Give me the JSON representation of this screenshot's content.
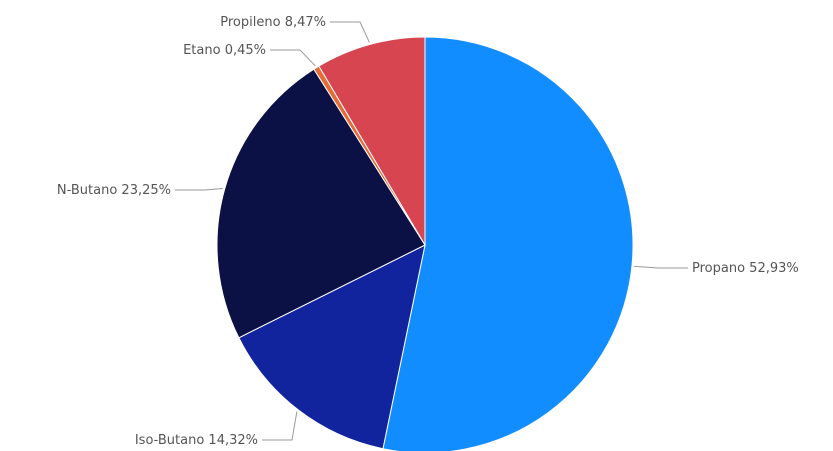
{
  "chart_data": {
    "type": "pie",
    "title": "",
    "slices": [
      {
        "label": "Propano",
        "value": 52.93,
        "display": "52,93%",
        "color": "#118DFF"
      },
      {
        "label": "Iso-Butano",
        "value": 14.32,
        "display": "14,32%",
        "color": "#12239E"
      },
      {
        "label": "N-Butano",
        "value": 23.25,
        "display": "23,25%",
        "color": "#0B1045"
      },
      {
        "label": "Etano",
        "value": 0.45,
        "display": "0,45%",
        "color": "#E66C37"
      },
      {
        "label": "Propileno",
        "value": 8.47,
        "display": "8,47%",
        "color": "#D64550"
      }
    ],
    "legend": "none",
    "labels": "outside with leader lines"
  }
}
